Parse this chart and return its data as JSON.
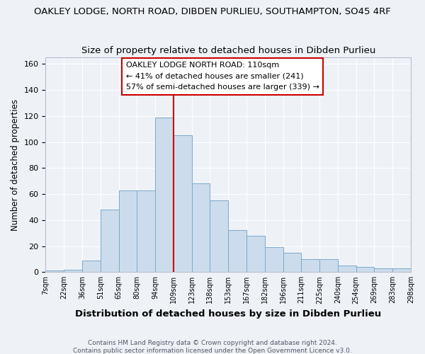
{
  "title": "OAKLEY LODGE, NORTH ROAD, DIBDEN PURLIEU, SOUTHAMPTON, SO45 4RF",
  "subtitle": "Size of property relative to detached houses in Dibden Purlieu",
  "xlabel": "Distribution of detached houses by size in Dibden Purlieu",
  "ylabel": "Number of detached properties",
  "bar_labels": [
    "7sqm",
    "22sqm",
    "36sqm",
    "51sqm",
    "65sqm",
    "80sqm",
    "94sqm",
    "109sqm",
    "123sqm",
    "138sqm",
    "153sqm",
    "167sqm",
    "182sqm",
    "196sqm",
    "211sqm",
    "225sqm",
    "240sqm",
    "254sqm",
    "269sqm",
    "283sqm",
    "298sqm"
  ],
  "bar_heights": [
    1,
    2,
    9,
    48,
    63,
    63,
    119,
    105,
    68,
    55,
    32,
    28,
    19,
    15,
    10,
    10,
    5,
    4,
    3,
    3
  ],
  "bar_color": "#ccdcec",
  "bar_edge_color": "#7aaacc",
  "vline_x_index": 7,
  "vline_color": "#cc0000",
  "annotation_title": "OAKLEY LODGE NORTH ROAD: 110sqm",
  "annotation_line1": "← 41% of detached houses are smaller (241)",
  "annotation_line2": "57% of semi-detached houses are larger (339) →",
  "annotation_box_color": "#ffffff",
  "annotation_box_edge": "#cc0000",
  "ylim": [
    0,
    165
  ],
  "yticks": [
    0,
    20,
    40,
    60,
    80,
    100,
    120,
    140,
    160
  ],
  "footer1": "Contains HM Land Registry data © Crown copyright and database right 2024.",
  "footer2": "Contains public sector information licensed under the Open Government Licence v3.0.",
  "background_color": "#eef2f7",
  "grid_color": "#ffffff",
  "spine_color": "#bbbbcc"
}
